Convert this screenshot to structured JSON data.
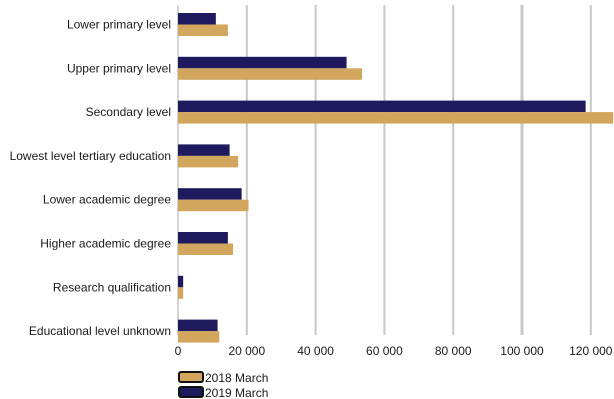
{
  "chart_data": {
    "type": "bar",
    "orientation": "horizontal",
    "categories": [
      "Lower primary level",
      "Upper primary level",
      "Secondary level",
      "Lowest level tertiary education",
      "Lower academic degree",
      "Higher academic degree",
      "Research qualification",
      "Educational level unknown"
    ],
    "series": [
      {
        "name": "2019 March",
        "color": "#1f1a5e",
        "values": [
          11000,
          49000,
          118500,
          15000,
          18500,
          14500,
          1500,
          11500
        ]
      },
      {
        "name": "2018 March",
        "color": "#d2a65c",
        "values": [
          14500,
          53500,
          126500,
          17500,
          20500,
          16000,
          1500,
          12000
        ]
      }
    ],
    "xlim": [
      0,
      125000
    ],
    "xticks": [
      0,
      20000,
      40000,
      60000,
      80000,
      100000,
      120000
    ],
    "xtick_labels": [
      "0",
      "20 000",
      "40 000",
      "60 000",
      "80 000",
      "100 000",
      "120 000"
    ],
    "grid": true,
    "legend_position": "bottom-left",
    "legend": [
      {
        "name": "2018 March",
        "color": "#d2a65c"
      },
      {
        "name": "2019 March",
        "color": "#1f1a5e"
      }
    ]
  }
}
